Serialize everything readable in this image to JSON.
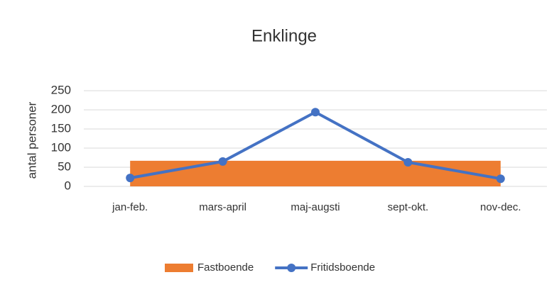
{
  "chart_data": {
    "type": "combo",
    "title": "Enklinge",
    "y_label": "antal personer",
    "categories": [
      "jan-feb.",
      "mars-april",
      "maj-augsti",
      "sept-okt.",
      "nov-dec."
    ],
    "series": [
      {
        "name": "Fastboende",
        "type": "area",
        "color": "#ed7d31",
        "values": [
          67,
          67,
          67,
          67,
          67
        ]
      },
      {
        "name": "Fritidsboende",
        "type": "line",
        "color": "#4472c4",
        "values": [
          22,
          65,
          194,
          63,
          20
        ]
      }
    ],
    "ylim": [
      0,
      250
    ],
    "yticks": [
      0,
      50,
      100,
      150,
      200,
      250
    ],
    "grid": true,
    "legend": "bottom"
  }
}
